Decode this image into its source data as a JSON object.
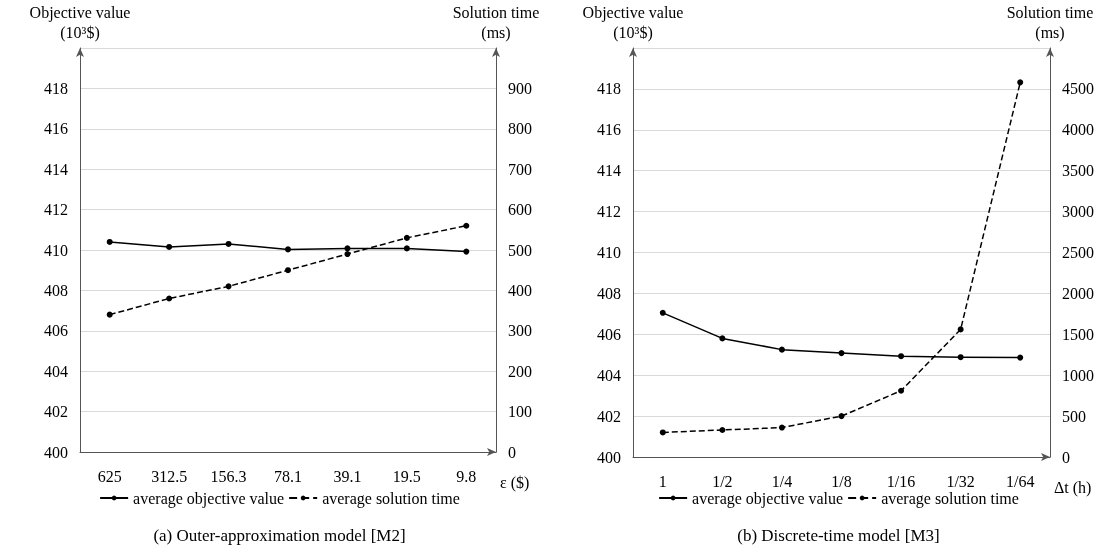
{
  "chart_data": [
    {
      "type": "line",
      "title": "(a) Outer-approximation model [M2]",
      "xlabel": "ε ($)",
      "ylabel": "Objective value\n(10³$)",
      "y2label": "Solution time\n(ms)",
      "categories": [
        "625",
        "312.5",
        "156.3",
        "78.1",
        "39.1",
        "19.5",
        "9.8"
      ],
      "series": [
        {
          "name": "average objective value",
          "color": "#000000",
          "line_style": "solid",
          "values": [
            410.4,
            410.15,
            410.3,
            410.03,
            410.08,
            410.08,
            409.92
          ]
        },
        {
          "name": "average solution time",
          "color": "#000000",
          "line_style": "dashed",
          "axis": "y2",
          "values": [
            340,
            380,
            410,
            450,
            490,
            530,
            560
          ]
        }
      ],
      "ylim": [
        400,
        420
      ],
      "yticks": [
        400,
        402,
        404,
        406,
        408,
        410,
        412,
        414,
        416,
        418,
        {
          "value": 420,
          "label": null
        }
      ],
      "y2lim": [
        0,
        1000
      ],
      "y2ticks": [
        0,
        100,
        200,
        300,
        400,
        500,
        600,
        700,
        800,
        900
      ],
      "grid": "y",
      "legend": "bottom",
      "marker": "circle"
    },
    {
      "type": "line",
      "title": "(b) Discrete-time model [M3]",
      "xlabel": "Δt (h)",
      "ylabel": "Objective value\n(10³$)",
      "y2label": "Solution time\n(ms)",
      "categories": [
        "1",
        "1/2",
        "1/4",
        "1/8",
        "1/16",
        "1/32",
        "1/64"
      ],
      "series": [
        {
          "name": "average objective value",
          "color": "#000000",
          "line_style": "solid",
          "values": [
            407.05,
            405.8,
            405.25,
            405.08,
            404.93,
            404.88,
            404.86
          ]
        },
        {
          "name": "average solution time",
          "color": "#000000",
          "line_style": "dashed",
          "axis": "y2",
          "values": [
            300,
            330,
            360,
            500,
            810,
            1560,
            4580
          ]
        }
      ],
      "ylim": [
        400,
        420
      ],
      "yticks": [
        400,
        402,
        404,
        406,
        408,
        410,
        412,
        414,
        416,
        418,
        {
          "value": 420,
          "label": null
        }
      ],
      "y2lim": [
        0,
        5000
      ],
      "y2ticks": [
        0,
        500,
        1000,
        1500,
        2000,
        2500,
        3000,
        3500,
        4000,
        4500
      ],
      "grid": "y",
      "legend": "bottom",
      "marker": "circle"
    }
  ]
}
